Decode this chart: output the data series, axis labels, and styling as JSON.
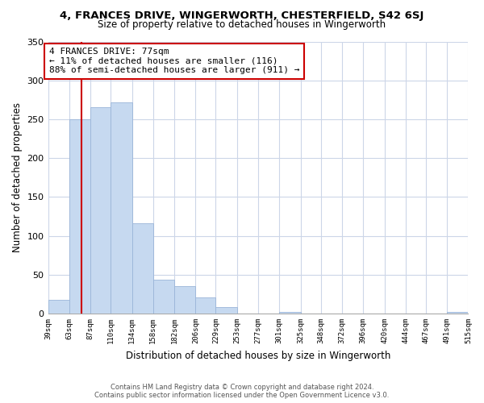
{
  "title": "4, FRANCES DRIVE, WINGERWORTH, CHESTERFIELD, S42 6SJ",
  "subtitle": "Size of property relative to detached houses in Wingerworth",
  "xlabel": "Distribution of detached houses by size in Wingerworth",
  "ylabel": "Number of detached properties",
  "bar_color": "#c6d9f0",
  "bar_edge_color": "#9ab5d8",
  "bin_edges": [
    39,
    63,
    87,
    110,
    134,
    158,
    182,
    206,
    229,
    253,
    277,
    301,
    325,
    348,
    372,
    396,
    420,
    444,
    467,
    491,
    515
  ],
  "bin_labels": [
    "39sqm",
    "63sqm",
    "87sqm",
    "110sqm",
    "134sqm",
    "158sqm",
    "182sqm",
    "206sqm",
    "229sqm",
    "253sqm",
    "277sqm",
    "301sqm",
    "325sqm",
    "348sqm",
    "372sqm",
    "396sqm",
    "420sqm",
    "444sqm",
    "467sqm",
    "491sqm",
    "515sqm"
  ],
  "bar_heights": [
    18,
    250,
    265,
    272,
    116,
    44,
    35,
    21,
    8,
    0,
    0,
    2,
    0,
    0,
    0,
    0,
    0,
    0,
    0,
    2
  ],
  "ylim": [
    0,
    350
  ],
  "yticks": [
    0,
    50,
    100,
    150,
    200,
    250,
    300,
    350
  ],
  "vline_x": 77,
  "vline_color": "#cc0000",
  "annotation_line1": "4 FRANCES DRIVE: 77sqm",
  "annotation_line2": "← 11% of detached houses are smaller (116)",
  "annotation_line3": "88% of semi-detached houses are larger (911) →",
  "annotation_box_color": "#ffffff",
  "annotation_box_edge": "#cc0000",
  "footer_line1": "Contains HM Land Registry data © Crown copyright and database right 2024.",
  "footer_line2": "Contains public sector information licensed under the Open Government Licence v3.0.",
  "background_color": "#ffffff",
  "grid_color": "#ccd6e8"
}
